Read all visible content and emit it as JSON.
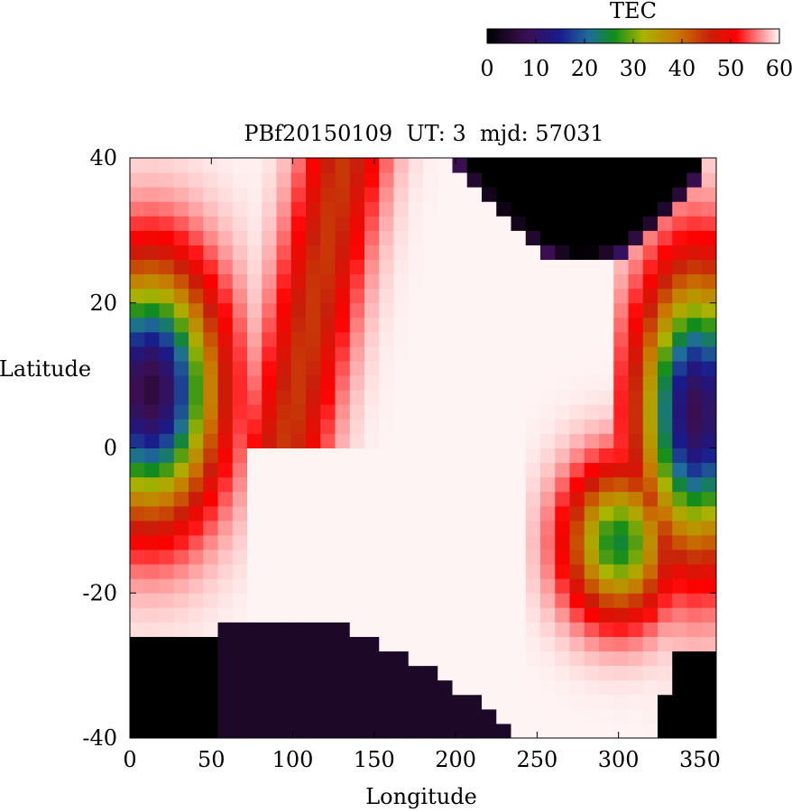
{
  "chart_data": {
    "type": "heatmap",
    "title": "PBf20150109  UT: 3  mjd: 57031",
    "xlabel": "Longitude",
    "ylabel": "Latitude",
    "xlim": [
      0,
      360
    ],
    "ylim": [
      -40,
      40
    ],
    "x_ticks": [
      "0",
      "50",
      "100",
      "150",
      "200",
      "250",
      "300",
      "350"
    ],
    "y_ticks": [
      "-40",
      "-20",
      "0",
      "20",
      "40"
    ],
    "cell_size_deg": [
      9,
      2
    ],
    "colorbar": {
      "label": "TEC",
      "range": [
        0,
        60
      ],
      "ticks": [
        "0",
        "10",
        "20",
        "30",
        "40",
        "50",
        "60"
      ],
      "stops": [
        {
          "value": 0,
          "color": "#000000"
        },
        {
          "value": 8,
          "color": "#3a0f50"
        },
        {
          "value": 15,
          "color": "#1a1a8c"
        },
        {
          "value": 21,
          "color": "#1e6e9a"
        },
        {
          "value": 26,
          "color": "#0f8c1e"
        },
        {
          "value": 32,
          "color": "#a8b400"
        },
        {
          "value": 39,
          "color": "#c87800"
        },
        {
          "value": 46,
          "color": "#c81e0a"
        },
        {
          "value": 51,
          "color": "#ff0000"
        },
        {
          "value": 56,
          "color": "#ff8c8c"
        },
        {
          "value": 60,
          "color": "#fff4f4"
        }
      ]
    },
    "features": [
      {
        "name": "equatorial anomaly west",
        "lon": [
          0,
          55
        ],
        "lat": [
          -9,
          25
        ],
        "min_tec": 6
      },
      {
        "name": "equatorial anomaly east",
        "lon": [
          305,
          360
        ],
        "lat": [
          -14,
          25
        ],
        "min_tec": 8
      },
      {
        "name": "southern anomaly crest",
        "lon": [
          250,
          320
        ],
        "lat": [
          -23,
          -3
        ],
        "min_tec": 25
      },
      {
        "name": "night-side low (south)",
        "lon": [
          0,
          240
        ],
        "lat": [
          -40,
          -23
        ],
        "min_tec": 2
      },
      {
        "name": "night-side low (north)",
        "lon": [
          195,
          355
        ],
        "lat": [
          25,
          40
        ],
        "min_tec": 0
      },
      {
        "name": "daytime high (north ridge)",
        "lon": [
          60,
          200
        ],
        "lat": [
          0,
          40
        ],
        "max_tec": 52
      }
    ]
  }
}
